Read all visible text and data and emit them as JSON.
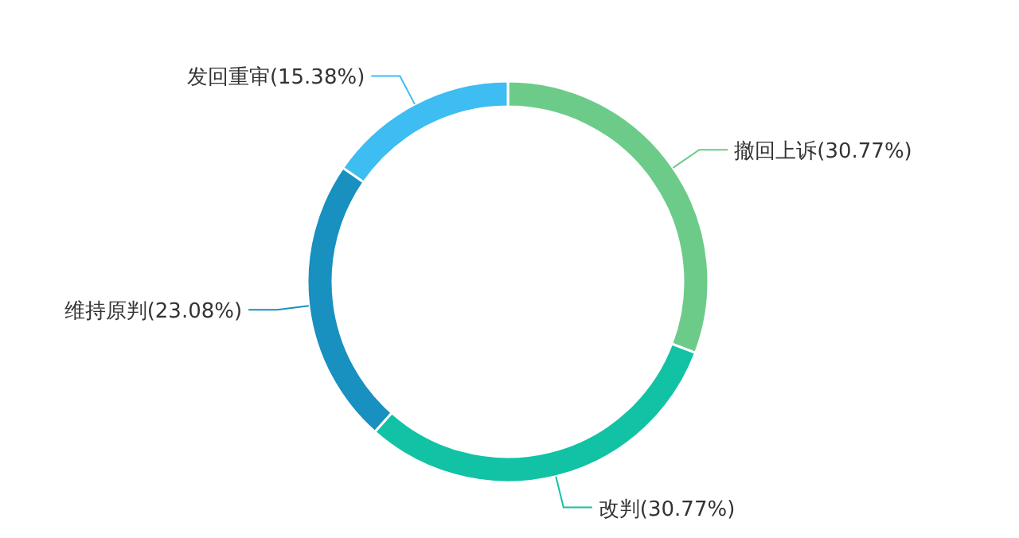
{
  "chart_data": {
    "type": "donut",
    "categories": [
      "撤回上诉",
      "改判",
      "维持原判",
      "发回重审"
    ],
    "values": [
      30.77,
      30.77,
      23.08,
      15.38
    ],
    "value_labels": [
      "(30.77%)",
      "(30.77%)",
      "(23.08%)",
      "(15.38%)"
    ],
    "colors": [
      "#6dcb89",
      "#12c2a5",
      "#1890c0",
      "#3dbdf1"
    ],
    "legend": false
  }
}
